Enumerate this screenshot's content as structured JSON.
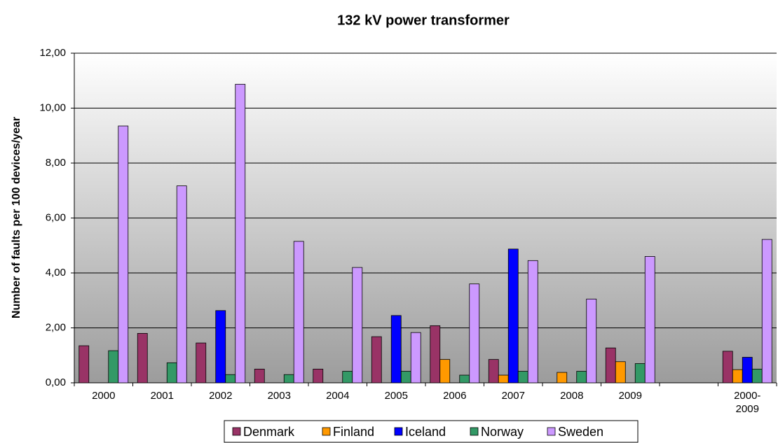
{
  "chart_data": {
    "type": "bar",
    "title": "132 kV power transformer",
    "y_label": "Number of faults per 100 devices/year",
    "categories": [
      "2000",
      "2001",
      "2002",
      "2003",
      "2004",
      "2005",
      "2006",
      "2007",
      "2008",
      "2009",
      null,
      "2000-\n2009"
    ],
    "series": [
      {
        "name": "Denmark",
        "color": "#993366",
        "values": [
          1.35,
          1.8,
          1.45,
          0.5,
          0.5,
          1.68,
          2.08,
          0.85,
          0,
          1.27,
          null,
          1.15
        ]
      },
      {
        "name": "Finland",
        "color": "#ff9900",
        "values": [
          0,
          0,
          0,
          0,
          0,
          0,
          0.85,
          0.28,
          0.38,
          0.77,
          null,
          0.48
        ]
      },
      {
        "name": "Iceland",
        "color": "#0000ff",
        "values": [
          0,
          0,
          2.63,
          0,
          0,
          2.45,
          0,
          4.87,
          0,
          0,
          null,
          0.93
        ]
      },
      {
        "name": "Norway",
        "color": "#339966",
        "values": [
          1.17,
          0.73,
          0.3,
          0.3,
          0.42,
          0.42,
          0.28,
          0.42,
          0.42,
          0.7,
          null,
          0.5
        ]
      },
      {
        "name": "Sweden",
        "color": "#cc99ff",
        "values": [
          9.35,
          7.17,
          10.87,
          5.15,
          4.2,
          1.83,
          3.6,
          4.45,
          3.05,
          4.6,
          null,
          5.22
        ]
      }
    ],
    "ylim": [
      0,
      12
    ],
    "yticks": [
      {
        "value": 0,
        "label": "0,00"
      },
      {
        "value": 2,
        "label": "2,00"
      },
      {
        "value": 4,
        "label": "4,00"
      },
      {
        "value": 6,
        "label": "6,00"
      },
      {
        "value": 8,
        "label": "8,00"
      },
      {
        "value": 10,
        "label": "10,00"
      },
      {
        "value": 12,
        "label": "12,00"
      }
    ],
    "grid": true,
    "legend": "bottom"
  }
}
